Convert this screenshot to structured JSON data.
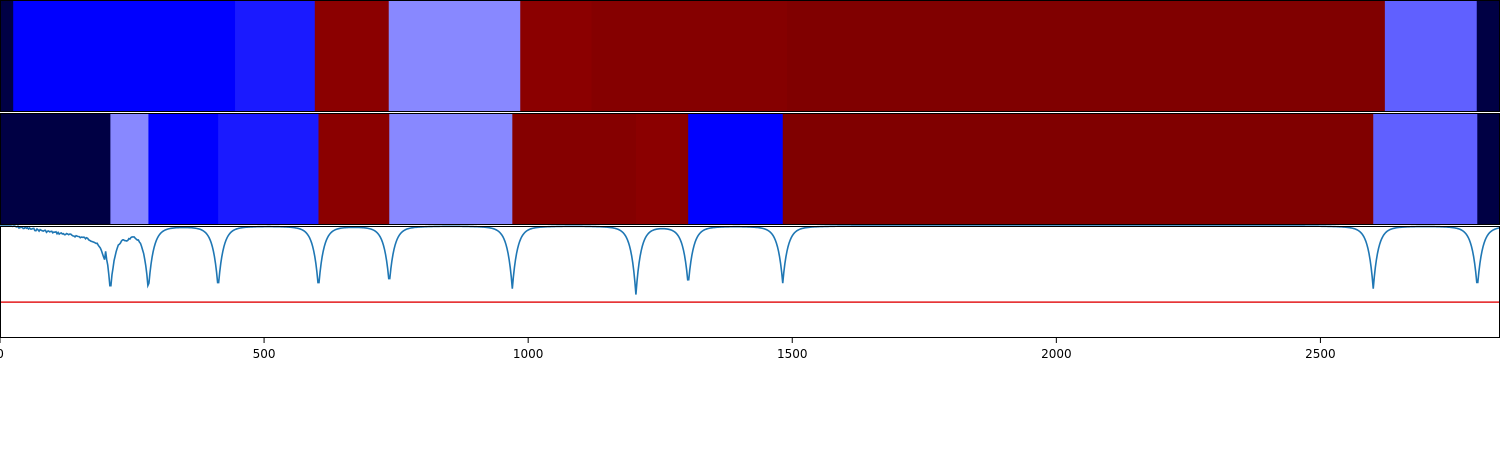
{
  "chart_data": {
    "type": "heatmap",
    "xlim": [
      0,
      2840
    ],
    "x_ticks": [
      "0",
      "500",
      "1000",
      "1500",
      "2000",
      "2500"
    ],
    "x_tick_values": [
      0,
      500,
      1000,
      1500,
      2000,
      2500
    ],
    "rows": [
      {
        "segments": [
          {
            "start": 0,
            "end": 25,
            "color": "#000044"
          },
          {
            "start": 25,
            "end": 445,
            "color": "#0000ff"
          },
          {
            "start": 445,
            "end": 596,
            "color": "#1a1aff"
          },
          {
            "start": 596,
            "end": 736,
            "color": "#8b0000"
          },
          {
            "start": 736,
            "end": 985,
            "color": "#8888ff"
          },
          {
            "start": 985,
            "end": 1120,
            "color": "#8b0000"
          },
          {
            "start": 1120,
            "end": 1490,
            "color": "#850000"
          },
          {
            "start": 1490,
            "end": 2622,
            "color": "#800000"
          },
          {
            "start": 2622,
            "end": 2796,
            "color": "#6060ff"
          },
          {
            "start": 2796,
            "end": 2840,
            "color": "#000044"
          }
        ]
      },
      {
        "segments": [
          {
            "start": 0,
            "end": 209,
            "color": "#000044"
          },
          {
            "start": 209,
            "end": 281,
            "color": "#8888ff"
          },
          {
            "start": 281,
            "end": 413,
            "color": "#0000ff"
          },
          {
            "start": 413,
            "end": 603,
            "color": "#1a1aff"
          },
          {
            "start": 603,
            "end": 737,
            "color": "#8b0000"
          },
          {
            "start": 737,
            "end": 970,
            "color": "#8888ff"
          },
          {
            "start": 970,
            "end": 1204,
            "color": "#850000"
          },
          {
            "start": 1204,
            "end": 1303,
            "color": "#8b0000"
          },
          {
            "start": 1303,
            "end": 1482,
            "color": "#0000ff"
          },
          {
            "start": 1482,
            "end": 2600,
            "color": "#800000"
          },
          {
            "start": 2600,
            "end": 2797,
            "color": "#6060ff"
          },
          {
            "start": 2797,
            "end": 2840,
            "color": "#000044"
          }
        ]
      }
    ],
    "signal": {
      "baseline": 1.0,
      "ylim": [
        0.0,
        1.0
      ],
      "threshold": 0.32,
      "threshold_color": "#e31a1c",
      "line_color": "#1f77b4",
      "drop_positions": [
        209,
        281,
        413,
        603,
        737,
        970,
        1204,
        1303,
        1482,
        2600,
        2797
      ],
      "drop_depths": [
        0.52,
        0.52,
        0.52,
        0.52,
        0.48,
        0.52,
        0.57,
        0.49,
        0.47,
        0.52,
        0.52
      ],
      "noise_region": [
        20,
        200
      ],
      "noise_depth": 0.12
    }
  }
}
